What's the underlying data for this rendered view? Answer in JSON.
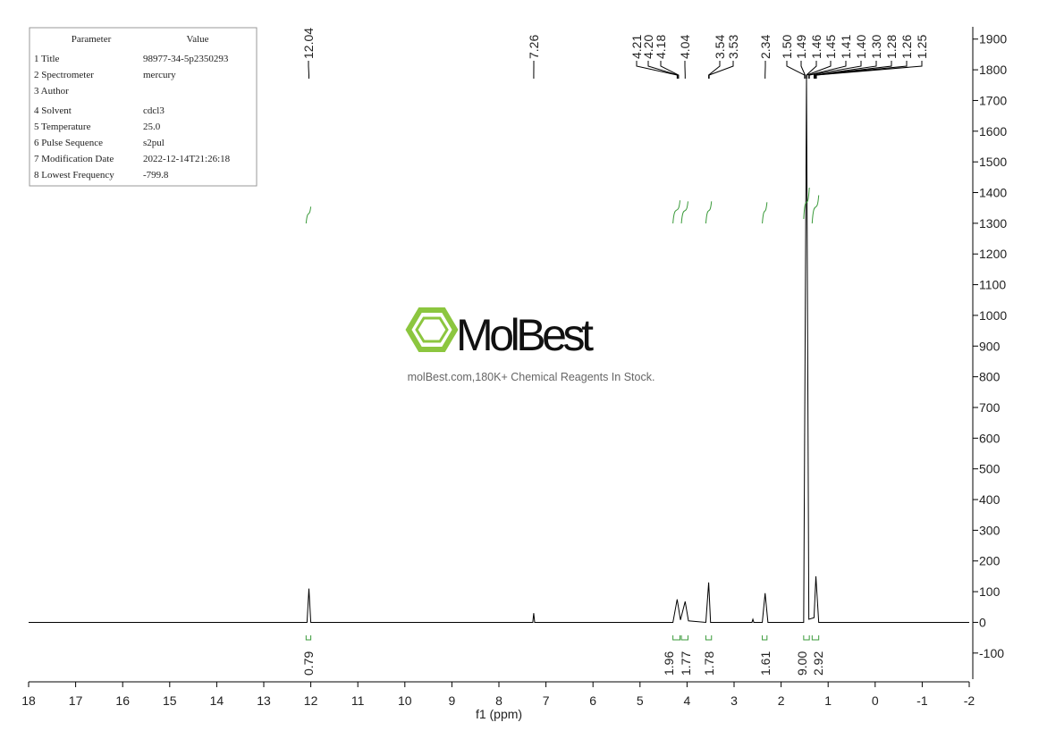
{
  "chart_data": {
    "type": "line",
    "x_label": "f1 (ppm)",
    "xlim": [
      18,
      -2
    ],
    "xticks": [
      18,
      17,
      16,
      15,
      14,
      13,
      12,
      11,
      10,
      9,
      8,
      7,
      6,
      5,
      4,
      3,
      2,
      1,
      0,
      -1,
      -2
    ],
    "ylim": [
      -185,
      1940
    ],
    "yticks": [
      -100,
      0,
      100,
      200,
      300,
      400,
      500,
      600,
      700,
      800,
      900,
      1000,
      1100,
      1200,
      1300,
      1400,
      1500,
      1600,
      1700,
      1800,
      1900
    ],
    "series": [
      {
        "color": "#000000",
        "x": [
          18,
          12.08,
          12.04,
          12.0,
          7.28,
          7.26,
          7.24,
          4.3,
          4.21,
          4.14,
          4.04,
          3.97,
          3.6,
          3.54,
          3.5,
          2.62,
          2.6,
          2.58,
          2.4,
          2.34,
          2.28,
          1.52,
          1.46,
          1.41,
          1.3,
          1.26,
          1.2,
          -2
        ],
        "values": [
          0,
          0,
          110,
          0,
          0,
          30,
          0,
          0,
          75,
          8,
          68,
          5,
          0,
          130,
          0,
          0,
          10,
          0,
          0,
          95,
          0,
          0,
          1780,
          10,
          15,
          150,
          0,
          0
        ]
      }
    ],
    "peak_labels": [
      12.04,
      7.26,
      4.21,
      {
        "value": 4.2,
        "label": "4.20"
      },
      4.18,
      4.04,
      3.54,
      3.53,
      2.34,
      {
        "value": 1.5,
        "label": "1.50"
      },
      1.49,
      1.46,
      1.45,
      1.41,
      {
        "value": 1.4,
        "label": "1.40"
      },
      {
        "value": 1.3,
        "label": "1.30"
      },
      1.28,
      1.26,
      1.25
    ],
    "integrals": {
      "ranges": [
        [
          12.1,
          12.0
        ],
        [
          4.3,
          4.15
        ],
        [
          4.12,
          3.98
        ],
        [
          3.6,
          3.48
        ],
        [
          2.4,
          2.3
        ],
        [
          1.52,
          1.4
        ],
        [
          1.34,
          1.2
        ]
      ],
      "values": [
        0.79,
        1.96,
        1.77,
        1.78,
        1.61,
        {
          "value": 9,
          "label": "9.00"
        },
        2.92
      ]
    }
  },
  "parameter_table": {
    "header": [
      "Parameter",
      "Value"
    ],
    "rows": [
      [
        "1 Title",
        "98977-34-5p2350293"
      ],
      [
        "2 Spectrometer",
        "mercury"
      ],
      [
        "3 Author"
      ],
      [
        "4 Solvent",
        "cdcl3"
      ],
      [
        "5 Temperature",
        "25.0"
      ],
      [
        "6 Pulse Sequence",
        "s2pul"
      ],
      [
        "7 Modification Date",
        "2022-12-14T21:26:18"
      ],
      [
        "8 Lowest Frequency",
        "-799.8"
      ]
    ]
  },
  "watermark": {
    "brand": "MolBest",
    "tagline": "molBest.com,180K+ Chemical Reagents In Stock."
  }
}
